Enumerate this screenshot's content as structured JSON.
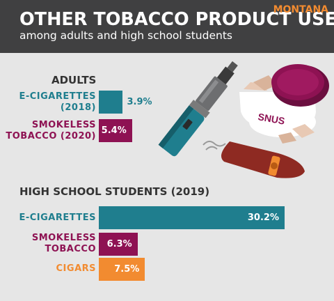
{
  "header": {
    "title": "OTHER TOBACCO PRODUCT USE",
    "subtitle": "among adults and high school students",
    "state": "MONTANA"
  },
  "colors": {
    "teal": "#1f7e8e",
    "maroon": "#8e1253",
    "orange": "#f28b30",
    "header_bg": "#404041",
    "background": "#e6e6e6"
  },
  "illustration": {
    "snus_label": "SNUS",
    "icons": [
      "e-cigarette-icon",
      "snus-tin-icon",
      "cigar-icon"
    ]
  },
  "chart_data": [
    {
      "type": "bar",
      "orientation": "horizontal",
      "title": "ADULTS",
      "categories": [
        "E-CIGARETTES\n(2018)",
        "SMOKELESS\nTOBACCO (2020)"
      ],
      "values": [
        3.9,
        5.4
      ],
      "value_labels": [
        "3.9%",
        "5.4%"
      ],
      "colors": [
        "#1f7e8e",
        "#8e1253"
      ],
      "unit": "%"
    },
    {
      "type": "bar",
      "orientation": "horizontal",
      "title": "HIGH SCHOOL STUDENTS (2019)",
      "categories": [
        "E-CIGARETTES",
        "SMOKELESS\nTOBACCO",
        "CIGARS"
      ],
      "values": [
        30.2,
        6.3,
        7.5
      ],
      "value_labels": [
        "30.2%",
        "6.3%",
        "7.5%"
      ],
      "colors": [
        "#1f7e8e",
        "#8e1253",
        "#f28b30"
      ],
      "unit": "%"
    }
  ]
}
